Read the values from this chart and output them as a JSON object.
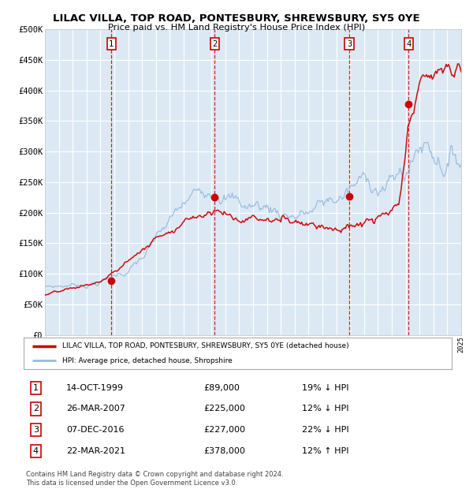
{
  "title": "LILAC VILLA, TOP ROAD, PONTESBURY, SHREWSBURY, SY5 0YE",
  "subtitle": "Price paid vs. HM Land Registry's House Price Index (HPI)",
  "x_start_year": 1995,
  "x_end_year": 2025,
  "ylim": [
    0,
    500000
  ],
  "yticks": [
    0,
    50000,
    100000,
    150000,
    200000,
    250000,
    300000,
    350000,
    400000,
    450000,
    500000
  ],
  "bg_color": "#dce9f5",
  "grid_color": "#ffffff",
  "sale_color": "#cc0000",
  "hpi_color": "#99bbdd",
  "sale_label": "LILAC VILLA, TOP ROAD, PONTESBURY, SHREWSBURY, SY5 0YE (detached house)",
  "hpi_label": "HPI: Average price, detached house, Shropshire",
  "footer": "Contains HM Land Registry data © Crown copyright and database right 2024.\nThis data is licensed under the Open Government Licence v3.0.",
  "sales": [
    {
      "num": 1,
      "date_label": "14-OCT-1999",
      "price": 89000,
      "year": 1999.79,
      "hpi_pct": "19% ↓ HPI"
    },
    {
      "num": 2,
      "date_label": "26-MAR-2007",
      "price": 225000,
      "year": 2007.23,
      "hpi_pct": "12% ↓ HPI"
    },
    {
      "num": 3,
      "date_label": "07-DEC-2016",
      "price": 227000,
      "year": 2016.93,
      "hpi_pct": "22% ↓ HPI"
    },
    {
      "num": 4,
      "date_label": "22-MAR-2021",
      "price": 378000,
      "year": 2021.22,
      "hpi_pct": "12% ↑ HPI"
    }
  ]
}
